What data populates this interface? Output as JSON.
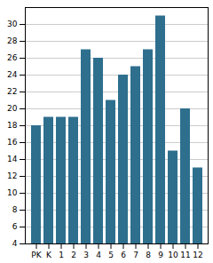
{
  "chart_data": {
    "type": "bar",
    "categories": [
      "PK",
      "K",
      "1",
      "2",
      "3",
      "4",
      "5",
      "6",
      "7",
      "8",
      "9",
      "10",
      "11",
      "12"
    ],
    "values": [
      18,
      19,
      19,
      19,
      27,
      26,
      21,
      24,
      25,
      27,
      31,
      15,
      20,
      13
    ],
    "color": "#2e6f8e",
    "ylim": [
      4,
      32
    ],
    "yticks": [
      4,
      6,
      8,
      10,
      12,
      14,
      16,
      18,
      20,
      22,
      24,
      26,
      28,
      30
    ],
    "grid": true
  }
}
